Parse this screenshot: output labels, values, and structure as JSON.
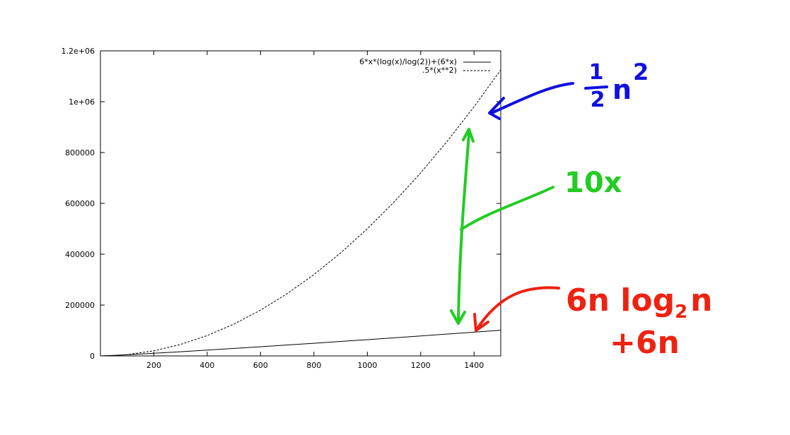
{
  "chart_data": {
    "type": "line",
    "x_ticks": [
      200,
      400,
      600,
      800,
      1000,
      1200,
      1400
    ],
    "y_ticks": [
      {
        "value": 0,
        "label": "0"
      },
      {
        "value": 200000,
        "label": "200000"
      },
      {
        "value": 400000,
        "label": "400000"
      },
      {
        "value": 600000,
        "label": "600000"
      },
      {
        "value": 800000,
        "label": "800000"
      },
      {
        "value": 1000000,
        "label": "1e+06"
      },
      {
        "value": 1200000,
        "label": "1.2e+06"
      }
    ],
    "xlim": [
      0,
      1500
    ],
    "ylim": [
      0,
      1200000
    ],
    "grid": false,
    "legend_position": "top-right",
    "series": [
      {
        "name": "6*x*(log(x)/log(2))+(6*x)",
        "style": "solid",
        "color": "#000000",
        "x": [
          1,
          50,
          100,
          200,
          300,
          400,
          500,
          600,
          700,
          800,
          900,
          1000,
          1100,
          1200,
          1300,
          1400,
          1500
        ],
        "y": [
          6,
          1993,
          4586,
          10372,
          16486,
          22834,
          29366,
          36054,
          42878,
          49817,
          56864,
          64008,
          71240,
          78557,
          85948,
          93411,
          100943
        ]
      },
      {
        "name": ".5*(x**2)",
        "style": "dashed",
        "color": "#000000",
        "x": [
          1,
          50,
          100,
          200,
          300,
          400,
          500,
          600,
          700,
          800,
          900,
          1000,
          1100,
          1200,
          1300,
          1400,
          1500
        ],
        "y": [
          0.5,
          1250,
          5000,
          20000,
          45000,
          80000,
          125000,
          180000,
          245000,
          320000,
          405000,
          500000,
          605000,
          720000,
          845000,
          980000,
          1125000
        ]
      }
    ]
  },
  "annotations": {
    "half_n2": {
      "line1": "1",
      "line2": "2",
      "letters": "n",
      "exp": "2",
      "color": "#1010e0"
    },
    "ten_x": {
      "text": "10x",
      "color": "#22cc22"
    },
    "nlogn": {
      "line1a": "6n log",
      "sub": "2",
      "line1b": "n",
      "line2": "+6n",
      "color": "#ee2211"
    }
  }
}
